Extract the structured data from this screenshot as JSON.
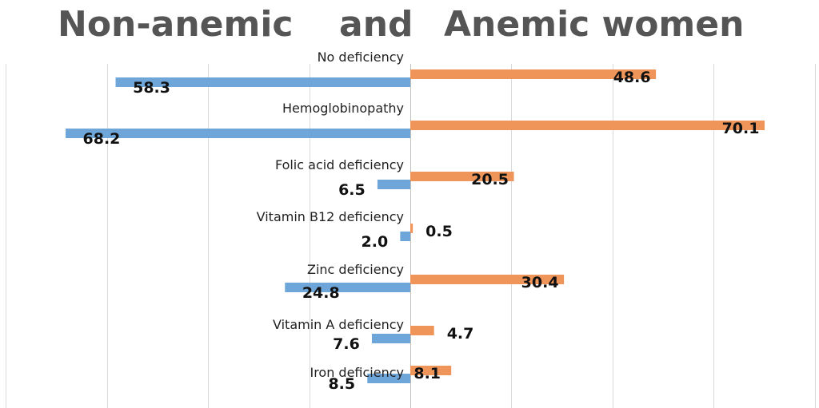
{
  "chart_data": {
    "type": "bar",
    "orientation": "horizontal-diverging",
    "title_parts": [
      "Non-anemic",
      "and",
      "Anemic women"
    ],
    "categories": [
      "No deficiency",
      "Hemoglobinopathy",
      "Folic acid deficiency",
      "Vitamin B12 deficiency",
      "Zinc deficiency",
      "Vitamin A deficiency",
      "Iron deficiency"
    ],
    "series": [
      {
        "name": "Non-anemic",
        "side": "left",
        "color": "#6FA6D9",
        "values": [
          58.3,
          68.2,
          6.5,
          2.0,
          24.8,
          7.6,
          8.5
        ],
        "value_labels": [
          "58.3",
          "68.2",
          "6.5",
          "2.0",
          "24.8",
          "7.6",
          "8.5"
        ]
      },
      {
        "name": "Anemic",
        "side": "right",
        "color": "#F0955A",
        "values": [
          48.6,
          70.1,
          20.5,
          0.5,
          30.4,
          4.7,
          8.1
        ],
        "value_labels": [
          "48.6",
          "70.1",
          "20.5",
          "0.5",
          "30.4",
          "4.7",
          "8.1"
        ]
      }
    ],
    "xlim": [
      -85,
      80
    ],
    "gridline_step": 20,
    "grid": true,
    "legend": "none"
  }
}
